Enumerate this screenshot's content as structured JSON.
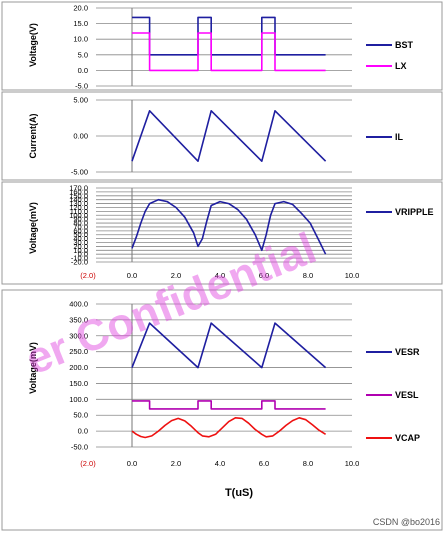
{
  "watermark": "er Confidential",
  "x_axis_title": "T(uS)",
  "credit": "CSDN @bo2016",
  "chart_data": [
    {
      "type": "line",
      "ylabel": "Voltage(V)",
      "ylim": [
        -5,
        20
      ],
      "yticks": [
        "20.0",
        "15.0",
        "10.0",
        "5.0",
        "0.0",
        "-5.0"
      ],
      "series": [
        {
          "name": "BST",
          "color": "#1f1fa0",
          "x": [
            0,
            0,
            0.8,
            0.8,
            3.0,
            3.0,
            3.6,
            3.6,
            5.9,
            5.9,
            6.5,
            6.5,
            8.8
          ],
          "y": [
            17,
            17,
            17,
            5,
            5,
            17,
            17,
            5,
            5,
            17,
            17,
            5,
            5
          ]
        },
        {
          "name": "LX",
          "color": "#ff00ff",
          "x": [
            0,
            0,
            0.8,
            0.8,
            3.0,
            3.0,
            3.6,
            3.6,
            5.9,
            5.9,
            6.5,
            6.5,
            8.8
          ],
          "y": [
            12,
            12,
            12,
            0,
            0,
            12,
            12,
            0,
            0,
            12,
            12,
            0,
            0
          ]
        }
      ]
    },
    {
      "type": "line",
      "ylabel": "Current(A)",
      "ylim": [
        -5,
        5
      ],
      "yticks": [
        "5.00",
        "0.00",
        "-5.00"
      ],
      "series": [
        {
          "name": "IL",
          "color": "#1f1fa0",
          "x": [
            0,
            0.8,
            3.0,
            3.6,
            5.9,
            6.5,
            8.8
          ],
          "y": [
            -3.5,
            3.5,
            -3.5,
            3.5,
            -3.5,
            3.5,
            -3.5
          ]
        }
      ]
    },
    {
      "type": "line",
      "ylabel": "Voltage(mV)",
      "ylim": [
        -20,
        170
      ],
      "yticks": [
        "170.0",
        "160.0",
        "150.0",
        "140.0",
        "130.0",
        "120.0",
        "110.0",
        "100.0",
        "90.0",
        "80.0",
        "70.0",
        "60.0",
        "50.0",
        "40.0",
        "30.0",
        "20.0",
        "10.0",
        "0.0",
        "-10.0",
        "-20.0"
      ],
      "xticks": [
        "(2.0)",
        "0.0",
        "2.0",
        "4.0",
        "6.0",
        "8.0",
        "10.0"
      ],
      "series": [
        {
          "name": "VRIPPLE",
          "color": "#1f1fa0",
          "x": [
            0,
            0.2,
            0.4,
            0.6,
            0.8,
            1.2,
            1.6,
            2.0,
            2.4,
            2.8,
            3.0,
            3.2,
            3.4,
            3.6,
            4.0,
            4.4,
            4.8,
            5.2,
            5.6,
            5.9,
            6.1,
            6.3,
            6.5,
            6.9,
            7.3,
            7.7,
            8.1,
            8.5,
            8.8
          ],
          "y": [
            15,
            45,
            80,
            110,
            130,
            140,
            135,
            120,
            95,
            55,
            20,
            40,
            85,
            125,
            135,
            130,
            115,
            90,
            50,
            10,
            50,
            100,
            130,
            135,
            128,
            105,
            80,
            35,
            0
          ]
        }
      ]
    },
    {
      "type": "line",
      "ylabel": "Voltage(mV)",
      "ylim": [
        -50,
        400
      ],
      "yticks": [
        "400.0",
        "350.0",
        "300.0",
        "250.0",
        "200.0",
        "150.0",
        "100.0",
        "50.0",
        "0.0",
        "-50.0"
      ],
      "xticks": [
        "(2.0)",
        "0.0",
        "2.0",
        "4.0",
        "6.0",
        "8.0",
        "10.0"
      ],
      "series": [
        {
          "name": "VESR",
          "color": "#1f1fa0",
          "x": [
            0,
            0.8,
            3.0,
            3.6,
            5.9,
            6.5,
            8.8
          ],
          "y": [
            200,
            340,
            200,
            340,
            200,
            340,
            200
          ]
        },
        {
          "name": "VESL",
          "color": "#b000b0",
          "x": [
            0,
            0,
            0.8,
            0.8,
            3.0,
            3.0,
            3.6,
            3.6,
            5.9,
            5.9,
            6.5,
            6.5,
            8.8
          ],
          "y": [
            95,
            95,
            95,
            70,
            70,
            95,
            95,
            70,
            70,
            95,
            95,
            70,
            70
          ]
        },
        {
          "name": "VCAP",
          "color": "#ee1111",
          "x": [
            0,
            0.2,
            0.4,
            0.6,
            0.9,
            1.2,
            1.5,
            1.8,
            2.1,
            2.4,
            2.7,
            3.0,
            3.2,
            3.5,
            3.8,
            4.1,
            4.4,
            4.7,
            5.0,
            5.3,
            5.6,
            5.9,
            6.1,
            6.4,
            6.7,
            7.0,
            7.3,
            7.6,
            7.9,
            8.2,
            8.5,
            8.8
          ],
          "y": [
            0,
            -10,
            -17,
            -20,
            -15,
            0,
            18,
            33,
            40,
            32,
            15,
            -5,
            -15,
            -18,
            -10,
            10,
            30,
            42,
            40,
            25,
            5,
            -10,
            -18,
            -15,
            0,
            18,
            33,
            42,
            36,
            20,
            3,
            -10
          ]
        }
      ]
    }
  ]
}
